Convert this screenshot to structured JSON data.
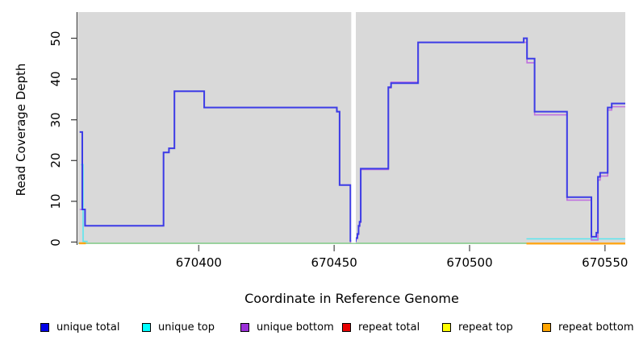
{
  "axes": {
    "x": {
      "title": "Coordinate in Reference Genome",
      "ticks": [
        {
          "label": "670400",
          "value": 670400
        },
        {
          "label": "670450",
          "value": 670450
        },
        {
          "label": "670500",
          "value": 670500
        },
        {
          "label": "670550",
          "value": 670550
        }
      ]
    },
    "y": {
      "title": "Read Coverage Depth",
      "ticks": [
        {
          "label": "0",
          "value": 0
        },
        {
          "label": "10",
          "value": 10
        },
        {
          "label": "20",
          "value": 20
        },
        {
          "label": "30",
          "value": 30
        },
        {
          "label": "40",
          "value": 40
        },
        {
          "label": "50",
          "value": 50
        }
      ]
    }
  },
  "legend": {
    "items": [
      {
        "label": "unique total",
        "color": "#0000e8"
      },
      {
        "label": "unique top",
        "color": "#00ffff"
      },
      {
        "label": "unique bottom",
        "color": "#9b30d8"
      },
      {
        "label": "repeat total",
        "color": "#e80000"
      },
      {
        "label": "repeat top",
        "color": "#ffff00"
      },
      {
        "label": "repeat bottom",
        "color": "#ffa500"
      }
    ]
  },
  "chart_data": {
    "type": "line",
    "step_mode": "hv",
    "title": "",
    "xlabel": "Coordinate in Reference Genome",
    "ylabel": "Read Coverage Depth",
    "xlim": [
      670355.5,
      670557.5
    ],
    "ylim": [
      0,
      55
    ],
    "plot_background": "#d9d9d9",
    "masked_gap_band": {
      "from": 670456.3,
      "to": 670458.0,
      "color": "#ffffff"
    },
    "series": [
      {
        "name": "zero baseline",
        "color": "#86cf8a",
        "width": 1.6,
        "segments": [
          {
            "steps": [
              [
                670355.5,
                -0.3
              ]
            ],
            "end": 670521
          }
        ]
      },
      {
        "name": "repeat bottom",
        "color": "#ffa514",
        "width": 2.4,
        "segments": [
          {
            "steps": [
              [
                670355.8,
                -0.3
              ]
            ],
            "end": 670358.3
          },
          {
            "steps": [
              [
                670521,
                -0.35
              ]
            ],
            "end": 670557.5
          }
        ]
      },
      {
        "name": "repeat total",
        "color": "#e80000",
        "width": 1.5,
        "segments": []
      },
      {
        "name": "repeat top",
        "color": "#ffff00",
        "width": 1.5,
        "segments": []
      },
      {
        "name": "unique top",
        "color": "#5ce6ef",
        "width": 1.6,
        "segments": [
          {
            "steps": [
              [
                670356.5,
                19
              ],
              [
                670357.3,
                0.15
              ]
            ],
            "end": 670359
          },
          {
            "steps": [
              [
                670521,
                0.8
              ]
            ],
            "end": 670557.5
          }
        ]
      },
      {
        "name": "unique bottom",
        "color": "#bf6fdf",
        "width": 1.6,
        "segments": [
          {
            "steps": [
              [
                670356,
                8
              ],
              [
                670358,
                4
              ],
              [
                670387,
                22
              ],
              [
                670389,
                23
              ],
              [
                670391,
                37
              ],
              [
                670402,
                33
              ],
              [
                670451,
                32
              ],
              [
                670452,
                14
              ],
              [
                670456,
                0
              ],
              [
                670458,
                0.8
              ],
              [
                670458.6,
                1.8
              ],
              [
                670459,
                3.8
              ],
              [
                670459.4,
                4.8
              ],
              [
                670459.8,
                17.8
              ],
              [
                670470,
                37.8
              ],
              [
                670471,
                39.2
              ],
              [
                670481,
                49
              ],
              [
                670521.2,
                44
              ],
              [
                670524,
                31.2
              ],
              [
                670536,
                10.3
              ],
              [
                670545,
                0.5
              ],
              [
                670547.4,
                15.2
              ],
              [
                670548.2,
                16.2
              ],
              [
                670551,
                32.4
              ],
              [
                670552.5,
                33.2
              ]
            ],
            "end": 670557.5
          }
        ]
      },
      {
        "name": "unique total",
        "color": "#3c3ce6",
        "width": 2,
        "segments": [
          {
            "steps": [
              [
                670356,
                27
              ],
              [
                670357,
                8
              ],
              [
                670358,
                4
              ],
              [
                670387,
                22
              ],
              [
                670389,
                23
              ],
              [
                670391,
                37
              ],
              [
                670402,
                33
              ],
              [
                670451,
                32
              ],
              [
                670452,
                14
              ],
              [
                670456,
                0.3
              ],
              [
                670458,
                1
              ],
              [
                670458.6,
                2
              ],
              [
                670459,
                4
              ],
              [
                670459.4,
                5
              ],
              [
                670459.8,
                18
              ],
              [
                670470,
                38
              ],
              [
                670471,
                39
              ],
              [
                670481,
                49
              ],
              [
                670520,
                50
              ],
              [
                670521.2,
                45
              ],
              [
                670524,
                32
              ],
              [
                670536,
                11
              ],
              [
                670545,
                1.3
              ],
              [
                670546.8,
                2.3
              ],
              [
                670547.4,
                16
              ],
              [
                670548.2,
                17
              ],
              [
                670551,
                33
              ],
              [
                670552.5,
                34
              ]
            ],
            "end": 670557.5
          }
        ]
      }
    ]
  }
}
